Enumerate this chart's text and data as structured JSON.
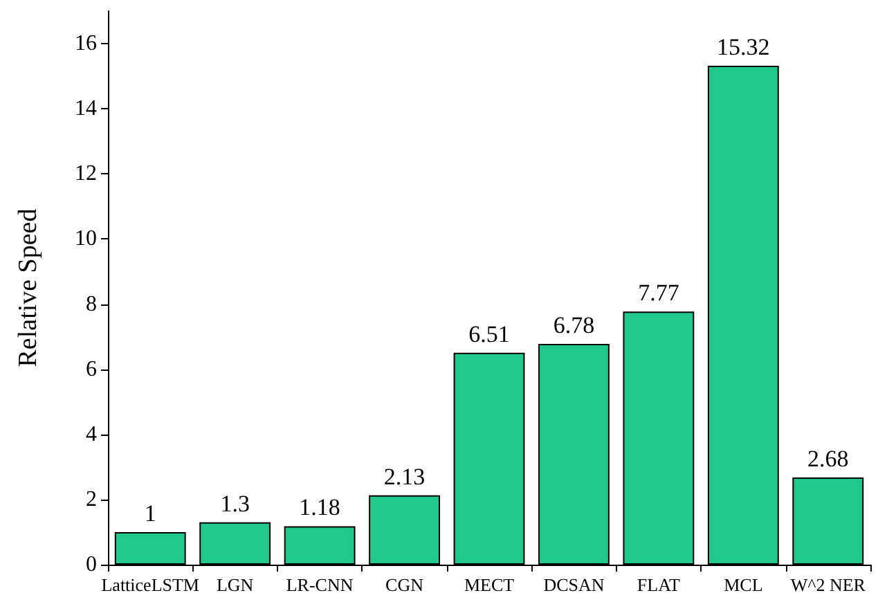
{
  "chart_data": {
    "type": "bar",
    "ylabel": "Relative Speed",
    "categories": [
      "LatticeLSTM",
      "LGN",
      "LR-CNN",
      "CGN",
      "MECT",
      "DCSAN",
      "FLAT",
      "MCL",
      "W^2 NER"
    ],
    "values": [
      1,
      1.3,
      1.18,
      2.13,
      6.51,
      6.78,
      7.77,
      15.32,
      2.68
    ],
    "color": "#20c98b",
    "ylim": [
      0,
      17
    ],
    "yticks": [
      0,
      2,
      4,
      6,
      8,
      10,
      12,
      14,
      16
    ],
    "grid": false,
    "data_labels": true
  }
}
